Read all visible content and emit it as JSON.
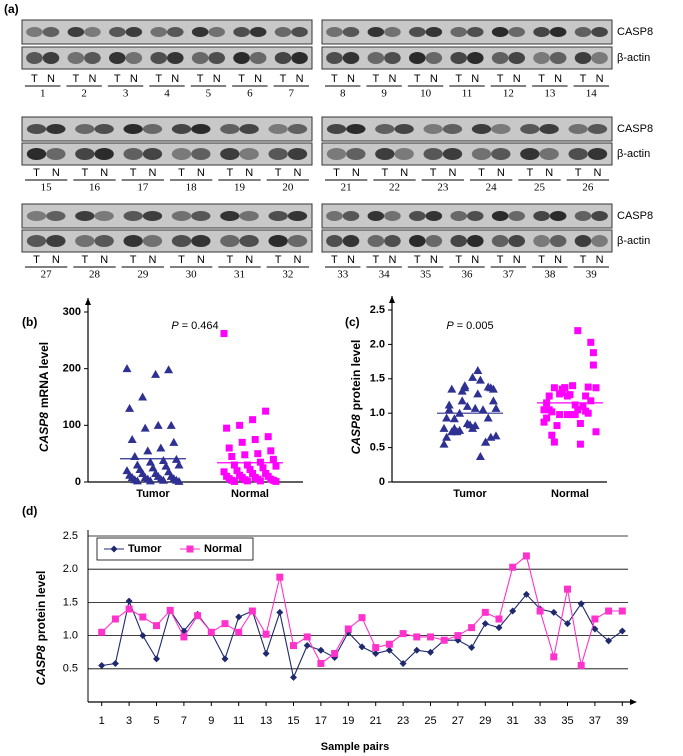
{
  "blots": {
    "panel_label": "(a)",
    "protein_labels": [
      "CASP8",
      "β-actin"
    ],
    "tumor_lane_label": "T",
    "normal_lane_label": "N",
    "rows": [
      {
        "left": [
          1,
          2,
          3,
          4,
          5,
          6,
          7
        ],
        "right": [
          8,
          9,
          10,
          11,
          12,
          13,
          14
        ]
      },
      {
        "left": [
          15,
          16,
          17,
          18,
          19,
          20
        ],
        "right": [
          21,
          22,
          23,
          24,
          25,
          26
        ]
      },
      {
        "left": [
          27,
          28,
          29,
          30,
          31,
          32
        ],
        "right": [
          33,
          34,
          35,
          36,
          37,
          38,
          39
        ]
      }
    ]
  },
  "chart_data": [
    {
      "type": "strip",
      "panel_label": "(b)",
      "annotation_symbol": "P",
      "annotation": "= 0.464",
      "ylabel_gene": "CASP8",
      "ylabel": "mRNA  level",
      "categories": [
        "Tumor",
        "Normal"
      ],
      "values": [
        [
          200,
          198,
          190,
          150,
          130,
          100,
          100,
          95,
          75,
          70,
          60,
          55,
          45,
          40,
          38,
          35,
          30,
          30,
          28,
          25,
          22,
          20,
          18,
          15,
          15,
          12,
          10,
          10,
          8,
          8,
          6,
          5,
          5,
          4,
          3,
          3,
          2,
          2,
          1
        ],
        [
          262,
          125,
          110,
          100,
          95,
          80,
          75,
          70,
          60,
          55,
          50,
          48,
          45,
          40,
          35,
          30,
          30,
          28,
          25,
          22,
          20,
          18,
          15,
          15,
          12,
          10,
          10,
          8,
          8,
          6,
          5,
          5,
          4,
          3,
          3,
          2,
          2,
          1,
          1
        ]
      ],
      "means": [
        41,
        34
      ],
      "colors": [
        "#2e3192",
        "#ff00ff"
      ],
      "markers": [
        "triangle",
        "square"
      ],
      "ylim": [
        0,
        300
      ],
      "yticks": [
        0,
        100,
        200,
        300
      ]
    },
    {
      "type": "strip",
      "panel_label": "(c)",
      "annotation_symbol": "P",
      "annotation": "= 0.005",
      "ylabel_gene": "CASP8",
      "ylabel": "protein  level",
      "categories": [
        "Tumor",
        "Normal"
      ],
      "values": [
        [
          0.55,
          0.58,
          1.52,
          1.0,
          0.65,
          1.38,
          1.07,
          1.32,
          1.05,
          0.65,
          1.28,
          1.37,
          0.73,
          1.35,
          0.37,
          0.85,
          0.78,
          0.67,
          1.05,
          0.83,
          0.73,
          0.78,
          0.58,
          0.78,
          0.75,
          0.93,
          0.93,
          0.82,
          1.18,
          1.12,
          1.37,
          1.62,
          1.4,
          1.35,
          1.18,
          1.48,
          1.1,
          0.92,
          1.07
        ],
        [
          1.05,
          1.25,
          1.4,
          1.28,
          1.15,
          1.38,
          0.98,
          1.3,
          1.05,
          1.18,
          1.05,
          1.37,
          1.02,
          1.88,
          0.85,
          0.98,
          0.58,
          0.73,
          1.1,
          1.27,
          0.82,
          0.87,
          1.03,
          0.98,
          0.98,
          0.93,
          1.0,
          1.12,
          1.35,
          1.25,
          2.03,
          2.2,
          1.37,
          0.68,
          1.7,
          0.55,
          1.25,
          1.37,
          1.37
        ]
      ],
      "means": [
        1.0,
        1.15
      ],
      "colors": [
        "#2e3192",
        "#ff00ff"
      ],
      "markers": [
        "triangle",
        "square"
      ],
      "ylim": [
        0,
        2.5
      ],
      "yticks": [
        0,
        0.5,
        {
          "value": 1,
          "label": "1.0"
        },
        1.5,
        {
          "value": 2,
          "label": "2.0"
        },
        2.5
      ]
    },
    {
      "type": "line",
      "panel_label": "(d)",
      "ylabel_gene": "CASP8",
      "ylabel": "protein  level",
      "xlabel": "Sample pairs",
      "x": [
        1,
        2,
        3,
        4,
        5,
        6,
        7,
        8,
        9,
        10,
        11,
        12,
        13,
        14,
        15,
        16,
        17,
        18,
        19,
        20,
        21,
        22,
        23,
        24,
        25,
        26,
        27,
        28,
        29,
        30,
        31,
        32,
        33,
        34,
        35,
        36,
        37,
        38,
        39
      ],
      "xlim": [
        0,
        40
      ],
      "xticks": [
        1,
        3,
        5,
        7,
        9,
        11,
        13,
        15,
        17,
        19,
        21,
        23,
        25,
        27,
        29,
        31,
        33,
        35,
        37,
        39
      ],
      "ylim": [
        0,
        2.5
      ],
      "yticks": [
        0.5,
        {
          "value": 1,
          "label": "1.0"
        },
        1.5,
        {
          "value": 2,
          "label": "2.0"
        },
        2.5
      ],
      "grid": true,
      "legend": "top-left",
      "series": [
        {
          "name": "Tumor",
          "color": "#1f2a6e",
          "marker": "diamond",
          "values": [
            0.55,
            0.58,
            1.52,
            1.0,
            0.65,
            1.38,
            1.07,
            1.32,
            1.05,
            0.65,
            1.28,
            1.37,
            0.73,
            1.35,
            0.37,
            0.85,
            0.78,
            0.67,
            1.05,
            0.83,
            0.73,
            0.78,
            0.58,
            0.78,
            0.75,
            0.93,
            0.93,
            0.82,
            1.18,
            1.12,
            1.37,
            1.62,
            1.4,
            1.35,
            1.18,
            1.48,
            1.1,
            0.92,
            1.07
          ]
        },
        {
          "name": "Normal",
          "color": "#ff33cc",
          "marker": "square",
          "values": [
            1.05,
            1.25,
            1.4,
            1.28,
            1.15,
            1.38,
            0.98,
            1.3,
            1.05,
            1.18,
            1.05,
            1.37,
            1.02,
            1.88,
            0.85,
            0.98,
            0.58,
            0.73,
            1.1,
            1.27,
            0.82,
            0.87,
            1.03,
            0.98,
            0.98,
            0.93,
            1.0,
            1.12,
            1.35,
            1.25,
            2.03,
            2.2,
            1.37,
            0.68,
            1.7,
            0.55,
            1.25,
            1.37,
            1.37
          ]
        }
      ]
    }
  ]
}
